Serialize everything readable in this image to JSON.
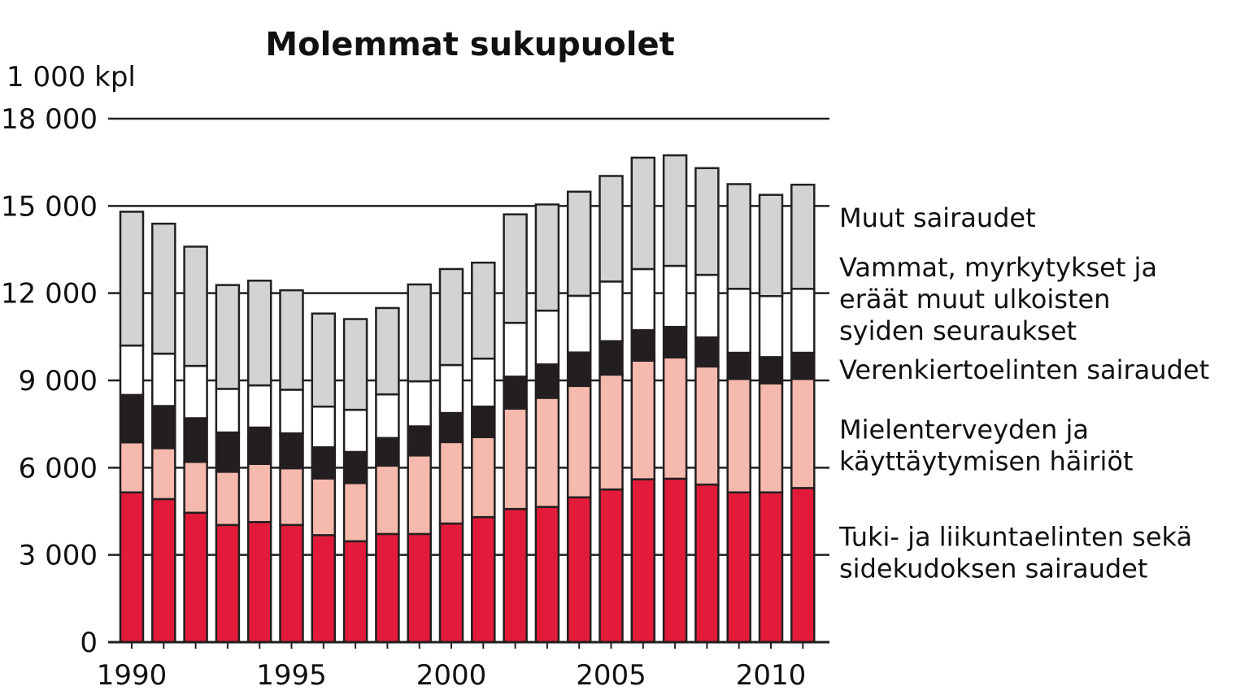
{
  "chart_data": {
    "type": "bar",
    "stacked": true,
    "title": "Molemmat sukupuolet",
    "unit_label": "1 000 kpl",
    "ylim": [
      0,
      18000
    ],
    "yticks": [
      0,
      3000,
      6000,
      9000,
      12000,
      15000,
      18000
    ],
    "ytick_labels": [
      "0",
      "3 000",
      "6 000",
      "9 000",
      "12 000",
      "15 000",
      "18 000"
    ],
    "xtick_labels": [
      "1990",
      "1995",
      "2000",
      "2005",
      "2010"
    ],
    "xtick_years": [
      1990,
      1995,
      2000,
      2005,
      2010
    ],
    "grid": "horizontal",
    "legend_placement": "right",
    "categories": [
      1990,
      1991,
      1992,
      1993,
      1994,
      1995,
      1996,
      1997,
      1998,
      1999,
      2000,
      2001,
      2002,
      2003,
      2004,
      2005,
      2006,
      2007,
      2008,
      2009,
      2010,
      2011
    ],
    "series": [
      {
        "name": "Tuki- ja liikuntaelinten sekä sidekudoksen sairaudet",
        "legend_lines": [
          "Tuki- ja liikuntaelinten sekä",
          "sidekudoksen sairaudet"
        ],
        "color": "#e31b3a",
        "values": [
          5150,
          4920,
          4450,
          4030,
          4130,
          4030,
          3680,
          3470,
          3720,
          3720,
          4080,
          4300,
          4580,
          4650,
          4980,
          5250,
          5600,
          5620,
          5420,
          5150,
          5150,
          5300
        ]
      },
      {
        "name": "Mielenterveyden ja käyttäytymisen häiriöt",
        "legend_lines": [
          "Mielenterveyden ja",
          "käyttäytymisen häiriöt"
        ],
        "color": "#f6b9ad",
        "values": [
          1720,
          1750,
          1750,
          1830,
          2000,
          1950,
          1950,
          2000,
          2350,
          2700,
          2800,
          2750,
          3450,
          3750,
          3830,
          3950,
          4080,
          4170,
          4060,
          3900,
          3750,
          3750
        ]
      },
      {
        "name": "Verenkiertoelinten sairaudet",
        "legend_lines": [
          "Verenkiertoelinten sairaudet"
        ],
        "color": "#231f20",
        "values": [
          1630,
          1450,
          1500,
          1350,
          1250,
          1200,
          1070,
          1070,
          950,
          1000,
          1000,
          1050,
          1100,
          1150,
          1150,
          1150,
          1050,
          1050,
          1000,
          900,
          900,
          900
        ]
      },
      {
        "name": "Vammat, myrkytykset ja eräät muut ulkoisten syiden seuraukset",
        "legend_lines": [
          "Vammat, myrkytykset ja",
          "eräät muut ulkoisten",
          "syiden seuraukset"
        ],
        "color": "#ffffff",
        "values": [
          1700,
          1800,
          1800,
          1500,
          1450,
          1500,
          1400,
          1450,
          1500,
          1550,
          1650,
          1650,
          1850,
          1850,
          1950,
          2050,
          2100,
          2100,
          2150,
          2200,
          2100,
          2200
        ]
      },
      {
        "name": "Muut sairaudet",
        "legend_lines": [
          "Muut sairaudet"
        ],
        "color": "#d1d3d4",
        "values": [
          4600,
          4470,
          4100,
          3570,
          3600,
          3420,
          3200,
          3120,
          2970,
          3330,
          3300,
          3300,
          3730,
          3650,
          3580,
          3630,
          3830,
          3800,
          3670,
          3600,
          3480,
          3580
        ]
      }
    ]
  }
}
